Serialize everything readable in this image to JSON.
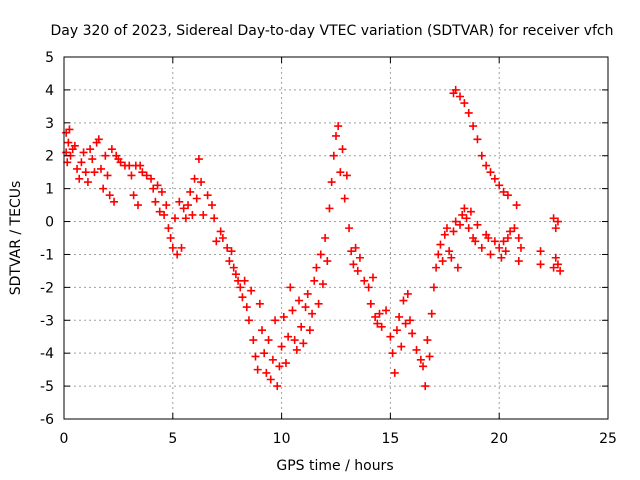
{
  "chart_data": {
    "type": "scatter",
    "title": "Day 320 of 2023, Sidereal Day-to-day VTEC variation (SDTVAR) for receiver vfch",
    "xlabel": "GPS time / hours",
    "ylabel": "SDTVAR / TECUs",
    "xlim": [
      0,
      25
    ],
    "ylim": [
      -6,
      5
    ],
    "xticks": [
      0,
      5,
      10,
      15,
      20,
      25
    ],
    "yticks": [
      -6,
      -5,
      -4,
      -3,
      -2,
      -1,
      0,
      1,
      2,
      3,
      4,
      5
    ],
    "grid": true,
    "marker": "+",
    "colors": {
      "series": "#ff0000"
    },
    "series": [
      {
        "name": "SDTVAR",
        "points": [
          [
            0.1,
            2.7
          ],
          [
            0.1,
            2.1
          ],
          [
            0.15,
            1.8
          ],
          [
            0.2,
            2.4
          ],
          [
            0.25,
            2.8
          ],
          [
            0.3,
            2.0
          ],
          [
            0.4,
            2.2
          ],
          [
            0.5,
            2.3
          ],
          [
            0.6,
            1.6
          ],
          [
            0.7,
            1.3
          ],
          [
            0.8,
            1.8
          ],
          [
            0.9,
            2.1
          ],
          [
            1.0,
            1.5
          ],
          [
            1.1,
            1.2
          ],
          [
            1.2,
            2.2
          ],
          [
            1.3,
            1.9
          ],
          [
            1.4,
            1.5
          ],
          [
            1.5,
            2.4
          ],
          [
            1.6,
            2.5
          ],
          [
            1.7,
            1.6
          ],
          [
            1.8,
            1.0
          ],
          [
            1.9,
            2.0
          ],
          [
            2.0,
            1.4
          ],
          [
            2.1,
            0.8
          ],
          [
            2.2,
            2.2
          ],
          [
            2.3,
            0.6
          ],
          [
            2.4,
            2.0
          ],
          [
            2.5,
            1.9
          ],
          [
            2.6,
            1.8
          ],
          [
            2.8,
            1.7
          ],
          [
            3.0,
            1.7
          ],
          [
            3.1,
            1.4
          ],
          [
            3.2,
            0.8
          ],
          [
            3.3,
            1.7
          ],
          [
            3.4,
            0.5
          ],
          [
            3.5,
            1.7
          ],
          [
            3.6,
            1.5
          ],
          [
            3.8,
            1.4
          ],
          [
            4.0,
            1.3
          ],
          [
            4.1,
            1.0
          ],
          [
            4.2,
            0.6
          ],
          [
            4.3,
            1.1
          ],
          [
            4.4,
            0.3
          ],
          [
            4.5,
            0.9
          ],
          [
            4.6,
            0.2
          ],
          [
            4.7,
            0.5
          ],
          [
            4.8,
            -0.2
          ],
          [
            4.9,
            -0.5
          ],
          [
            5.0,
            -0.8
          ],
          [
            5.1,
            0.1
          ],
          [
            5.2,
            -1.0
          ],
          [
            5.3,
            0.6
          ],
          [
            5.4,
            -0.8
          ],
          [
            5.5,
            0.4
          ],
          [
            5.6,
            0.1
          ],
          [
            5.7,
            0.5
          ],
          [
            5.8,
            0.9
          ],
          [
            5.9,
            0.2
          ],
          [
            6.0,
            1.3
          ],
          [
            6.1,
            0.7
          ],
          [
            6.2,
            1.9
          ],
          [
            6.3,
            1.2
          ],
          [
            6.4,
            0.2
          ],
          [
            6.6,
            0.8
          ],
          [
            6.8,
            0.5
          ],
          [
            6.9,
            0.1
          ],
          [
            7.0,
            -0.6
          ],
          [
            7.2,
            -0.3
          ],
          [
            7.3,
            -0.5
          ],
          [
            7.5,
            -0.8
          ],
          [
            7.6,
            -1.2
          ],
          [
            7.7,
            -0.9
          ],
          [
            7.8,
            -1.4
          ],
          [
            7.9,
            -1.6
          ],
          [
            8.0,
            -1.8
          ],
          [
            8.1,
            -2.0
          ],
          [
            8.2,
            -2.3
          ],
          [
            8.3,
            -1.8
          ],
          [
            8.4,
            -2.6
          ],
          [
            8.5,
            -3.0
          ],
          [
            8.6,
            -2.1
          ],
          [
            8.7,
            -3.6
          ],
          [
            8.8,
            -4.1
          ],
          [
            8.9,
            -4.5
          ],
          [
            9.0,
            -2.5
          ],
          [
            9.1,
            -3.3
          ],
          [
            9.2,
            -4.0
          ],
          [
            9.3,
            -4.6
          ],
          [
            9.4,
            -3.6
          ],
          [
            9.5,
            -4.8
          ],
          [
            9.6,
            -4.2
          ],
          [
            9.7,
            -3.0
          ],
          [
            9.8,
            -5.0
          ],
          [
            9.9,
            -4.4
          ],
          [
            10.0,
            -3.8
          ],
          [
            10.1,
            -2.9
          ],
          [
            10.2,
            -4.3
          ],
          [
            10.3,
            -3.5
          ],
          [
            10.4,
            -2.0
          ],
          [
            10.5,
            -2.7
          ],
          [
            10.6,
            -3.6
          ],
          [
            10.7,
            -3.9
          ],
          [
            10.8,
            -2.4
          ],
          [
            10.9,
            -3.2
          ],
          [
            11.0,
            -3.7
          ],
          [
            11.1,
            -2.6
          ],
          [
            11.2,
            -2.2
          ],
          [
            11.3,
            -3.3
          ],
          [
            11.4,
            -2.8
          ],
          [
            11.5,
            -1.8
          ],
          [
            11.6,
            -1.4
          ],
          [
            11.7,
            -2.5
          ],
          [
            11.8,
            -1.0
          ],
          [
            11.9,
            -1.9
          ],
          [
            12.0,
            -0.5
          ],
          [
            12.1,
            -1.2
          ],
          [
            12.2,
            0.4
          ],
          [
            12.3,
            1.2
          ],
          [
            12.4,
            2.0
          ],
          [
            12.5,
            2.6
          ],
          [
            12.6,
            2.9
          ],
          [
            12.7,
            1.5
          ],
          [
            12.8,
            2.2
          ],
          [
            12.9,
            0.7
          ],
          [
            13.0,
            1.4
          ],
          [
            13.1,
            -0.2
          ],
          [
            13.2,
            -0.9
          ],
          [
            13.3,
            -1.3
          ],
          [
            13.4,
            -0.8
          ],
          [
            13.5,
            -1.5
          ],
          [
            13.6,
            -1.1
          ],
          [
            13.8,
            -1.8
          ],
          [
            14.0,
            -2.0
          ],
          [
            14.1,
            -2.5
          ],
          [
            14.2,
            -1.7
          ],
          [
            14.3,
            -2.9
          ],
          [
            14.4,
            -3.1
          ],
          [
            14.5,
            -2.8
          ],
          [
            14.6,
            -3.2
          ],
          [
            14.8,
            -2.7
          ],
          [
            15.0,
            -3.5
          ],
          [
            15.1,
            -4.0
          ],
          [
            15.2,
            -4.6
          ],
          [
            15.3,
            -3.3
          ],
          [
            15.4,
            -2.9
          ],
          [
            15.5,
            -3.8
          ],
          [
            15.6,
            -2.4
          ],
          [
            15.7,
            -3.1
          ],
          [
            15.8,
            -2.2
          ],
          [
            15.9,
            -3.0
          ],
          [
            16.0,
            -3.4
          ],
          [
            16.2,
            -3.9
          ],
          [
            16.4,
            -4.2
          ],
          [
            16.5,
            -4.4
          ],
          [
            16.6,
            -5.0
          ],
          [
            16.7,
            -3.6
          ],
          [
            16.8,
            -4.1
          ],
          [
            16.9,
            -2.8
          ],
          [
            17.0,
            -2.0
          ],
          [
            17.1,
            -1.4
          ],
          [
            17.2,
            -1.0
          ],
          [
            17.3,
            -0.7
          ],
          [
            17.4,
            -1.2
          ],
          [
            17.5,
            -0.4
          ],
          [
            17.6,
            -0.2
          ],
          [
            17.7,
            -0.9
          ],
          [
            17.8,
            -1.1
          ],
          [
            17.9,
            -0.3
          ],
          [
            18.0,
            0.0
          ],
          [
            18.1,
            -1.4
          ],
          [
            18.2,
            -0.1
          ],
          [
            18.3,
            0.2
          ],
          [
            18.4,
            0.4
          ],
          [
            18.5,
            0.1
          ],
          [
            18.6,
            -0.2
          ],
          [
            18.7,
            0.3
          ],
          [
            18.8,
            -0.5
          ],
          [
            18.9,
            -0.6
          ],
          [
            19.0,
            -0.1
          ],
          [
            19.2,
            -0.8
          ],
          [
            19.4,
            -0.4
          ],
          [
            19.5,
            -0.5
          ],
          [
            19.6,
            -1.0
          ],
          [
            19.8,
            -0.6
          ],
          [
            20.0,
            -0.8
          ],
          [
            20.1,
            -1.1
          ],
          [
            20.2,
            -0.6
          ],
          [
            20.3,
            -0.9
          ],
          [
            20.4,
            -0.5
          ],
          [
            20.5,
            -0.3
          ],
          [
            20.7,
            -0.2
          ],
          [
            20.8,
            0.5
          ],
          [
            20.9,
            -0.5
          ],
          [
            21.0,
            -0.8
          ],
          [
            20.9,
            -1.2
          ],
          [
            17.9,
            3.9
          ],
          [
            18.0,
            4.0
          ],
          [
            18.2,
            3.8
          ],
          [
            18.4,
            3.6
          ],
          [
            18.6,
            3.3
          ],
          [
            18.8,
            2.9
          ],
          [
            19.0,
            2.5
          ],
          [
            19.2,
            2.0
          ],
          [
            19.4,
            1.7
          ],
          [
            19.6,
            1.5
          ],
          [
            19.8,
            1.3
          ],
          [
            20.0,
            1.1
          ],
          [
            20.2,
            0.9
          ],
          [
            20.4,
            0.8
          ],
          [
            22.5,
            0.1
          ],
          [
            22.6,
            -0.2
          ],
          [
            22.7,
            0.0
          ],
          [
            22.6,
            -1.1
          ],
          [
            22.7,
            -1.3
          ],
          [
            22.8,
            -1.5
          ],
          [
            22.5,
            -1.4
          ],
          [
            21.9,
            -0.9
          ],
          [
            21.9,
            -1.3
          ]
        ]
      }
    ]
  }
}
